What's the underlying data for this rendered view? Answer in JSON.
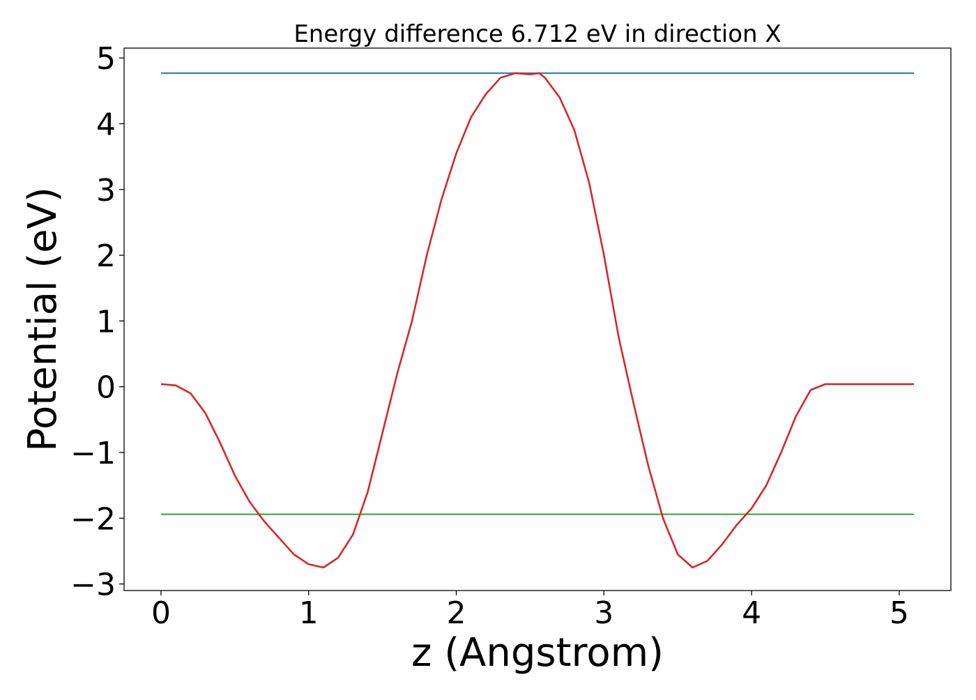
{
  "chart_data": {
    "type": "line",
    "title": "Energy difference 6.712 eV in direction X",
    "xlabel": "z (Angstrom)",
    "ylabel": "Potential (eV)",
    "xlim": [
      -0.25,
      5.35
    ],
    "ylim": [
      -3.1,
      5.15
    ],
    "xticks": [
      0,
      1,
      2,
      3,
      4,
      5
    ],
    "xtick_labels": [
      "0",
      "1",
      "2",
      "3",
      "4",
      "5"
    ],
    "yticks": [
      -3,
      -2,
      -1,
      0,
      1,
      2,
      3,
      4,
      5
    ],
    "ytick_labels": [
      "−3",
      "−2",
      "−1",
      "0",
      "1",
      "2",
      "3",
      "4",
      "5"
    ],
    "grid": false,
    "series": [
      {
        "color": "#1f77b4",
        "style": "hline",
        "x": [
          0,
          5.1
        ],
        "y": [
          4.77,
          4.77
        ]
      },
      {
        "color": "#2ca02c",
        "style": "hline",
        "x": [
          0,
          5.1
        ],
        "y": [
          -1.94,
          -1.94
        ]
      },
      {
        "color": "#d62728",
        "style": "curve",
        "x": [
          0,
          0.1,
          0.2,
          0.3,
          0.4,
          0.5,
          0.6,
          0.7,
          0.8,
          0.9,
          1.0,
          1.1,
          1.2,
          1.3,
          1.4,
          1.5,
          1.6,
          1.7,
          1.8,
          1.9,
          2.0,
          2.1,
          2.2,
          2.3,
          2.4,
          2.5,
          2.56,
          2.6,
          2.7,
          2.8,
          2.9,
          3.0,
          3.1,
          3.2,
          3.3,
          3.4,
          3.5,
          3.6,
          3.7,
          3.8,
          3.9,
          4.0,
          4.1,
          4.2,
          4.3,
          4.4,
          4.5,
          4.6,
          4.7,
          4.8,
          4.9,
          5.0,
          5.1
        ],
        "y": [
          0.04,
          0.02,
          -0.1,
          -0.4,
          -0.85,
          -1.35,
          -1.75,
          -2.05,
          -2.3,
          -2.55,
          -2.7,
          -2.75,
          -2.6,
          -2.25,
          -1.6,
          -0.7,
          0.2,
          1.0,
          2.0,
          2.85,
          3.55,
          4.1,
          4.45,
          4.7,
          4.77,
          4.75,
          4.77,
          4.7,
          4.4,
          3.9,
          3.1,
          2.0,
          0.75,
          -0.25,
          -1.2,
          -2.0,
          -2.55,
          -2.75,
          -2.65,
          -2.4,
          -2.1,
          -1.85,
          -1.5,
          -1.0,
          -0.45,
          -0.05,
          0.04,
          0.04,
          0.04,
          0.04,
          0.04,
          0.04,
          0.04
        ]
      }
    ]
  }
}
